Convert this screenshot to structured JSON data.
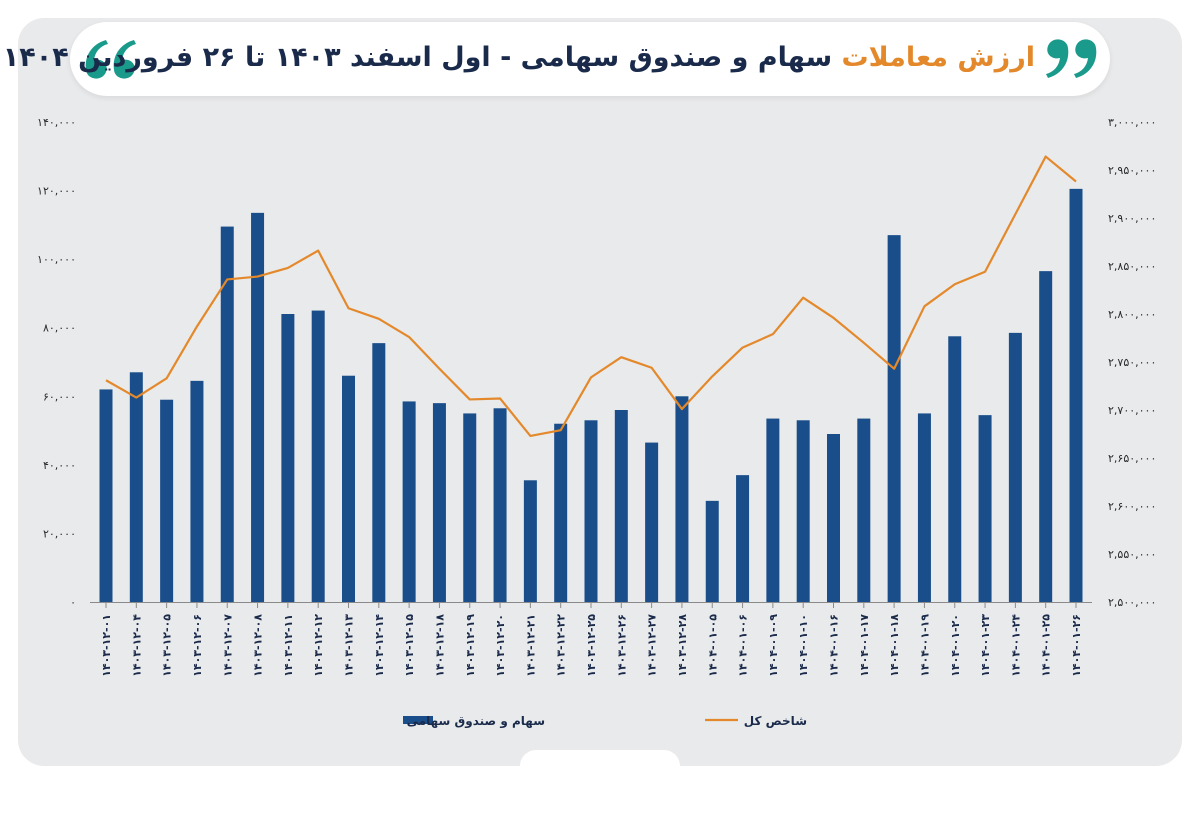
{
  "title": {
    "accent": "ارزش معاملات",
    "rest": " سهام و صندوق سهامی - اول اسفند ۱۴۰۳ تا ۲۶ فروردین ۱۴۰۴"
  },
  "colors": {
    "bar": "#1a4e8a",
    "line": "#e4892b",
    "quote": "#1a9a8a",
    "panel": "#e9eaec"
  },
  "chart_data": {
    "type": "bar",
    "categories": [
      "۱۴۰۳-۱۲-۰۱",
      "۱۴۰۳-۱۲-۰۴",
      "۱۴۰۳-۱۲-۰۵",
      "۱۴۰۳-۱۲-۰۶",
      "۱۴۰۳-۱۲-۰۷",
      "۱۴۰۳-۱۲-۰۸",
      "۱۴۰۳-۱۲-۱۱",
      "۱۴۰۳-۱۲-۱۲",
      "۱۴۰۳-۱۲-۱۳",
      "۱۴۰۳-۱۲-۱۴",
      "۱۴۰۳-۱۲-۱۵",
      "۱۴۰۳-۱۲-۱۸",
      "۱۴۰۳-۱۲-۱۹",
      "۱۴۰۳-۱۲-۲۰",
      "۱۴۰۳-۱۲-۲۱",
      "۱۴۰۳-۱۲-۲۲",
      "۱۴۰۳-۱۲-۲۵",
      "۱۴۰۳-۱۲-۲۶",
      "۱۴۰۳-۱۲-۲۷",
      "۱۴۰۳-۱۲-۲۸",
      "۱۴۰۴-۰۱-۰۵",
      "۱۴۰۴-۰۱-۰۶",
      "۱۴۰۴-۰۱-۰۹",
      "۱۴۰۴-۰۱-۱۰",
      "۱۴۰۴-۰۱-۱۶",
      "۱۴۰۴-۰۱-۱۷",
      "۱۴۰۴-۰۱-۱۸",
      "۱۴۰۴-۰۱-۱۹",
      "۱۴۰۴-۰۱-۲۰",
      "۱۴۰۴-۰۱-۲۳",
      "۱۴۰۴-۰۱-۲۴",
      "۱۴۰۴-۰۱-۲۵",
      "۱۴۰۴-۰۱-۲۶"
    ],
    "series": [
      {
        "name": "سهام و صندوق سهامی",
        "type": "bar",
        "axis": "left",
        "values": [
          62000,
          67000,
          59000,
          64500,
          109500,
          113500,
          84000,
          85000,
          66000,
          75500,
          58500,
          58000,
          55000,
          56500,
          35500,
          52000,
          53000,
          56000,
          46500,
          60000,
          29500,
          37000,
          53500,
          53000,
          49000,
          53500,
          107000,
          55000,
          77500,
          54500,
          78500,
          96500,
          120500
        ]
      },
      {
        "name": "شاخص کل",
        "type": "line",
        "axis": "right",
        "values": [
          2731000,
          2713000,
          2733000,
          2787000,
          2836000,
          2839000,
          2848000,
          2866000,
          2806000,
          2795000,
          2776000,
          2743000,
          2711000,
          2712000,
          2673000,
          2679000,
          2734000,
          2755000,
          2744000,
          2701000,
          2735000,
          2765000,
          2779000,
          2817000,
          2796000,
          2770000,
          2743000,
          2808000,
          2831000,
          2844000,
          2904000,
          2964000,
          2938000
        ]
      }
    ],
    "y_left": {
      "min": 0,
      "max": 140000,
      "ticks": [
        0,
        20000,
        40000,
        60000,
        80000,
        100000,
        120000,
        140000
      ],
      "tick_labels": [
        "۰",
        "۲۰,۰۰۰",
        "۴۰,۰۰۰",
        "۶۰,۰۰۰",
        "۸۰,۰۰۰",
        "۱۰۰,۰۰۰",
        "۱۲۰,۰۰۰",
        "۱۴۰,۰۰۰"
      ]
    },
    "y_right": {
      "min": 2500000,
      "max": 3000000,
      "ticks": [
        2500000,
        2550000,
        2600000,
        2650000,
        2700000,
        2750000,
        2800000,
        2850000,
        2900000,
        2950000,
        3000000
      ],
      "tick_labels": [
        "۲,۵۰۰,۰۰۰",
        "۲,۵۵۰,۰۰۰",
        "۲,۶۰۰,۰۰۰",
        "۲,۶۵۰,۰۰۰",
        "۲,۷۰۰,۰۰۰",
        "۲,۷۵۰,۰۰۰",
        "۲,۸۰۰,۰۰۰",
        "۲,۸۵۰,۰۰۰",
        "۲,۹۰۰,۰۰۰",
        "۲,۹۵۰,۰۰۰",
        "۳,۰۰۰,۰۰۰"
      ]
    },
    "grid": false,
    "legend": [
      {
        "label": "سهام و صندوق سهامی",
        "kind": "bar"
      },
      {
        "label": "شاخص کل",
        "kind": "line"
      }
    ],
    "legend_position": "bottom"
  }
}
